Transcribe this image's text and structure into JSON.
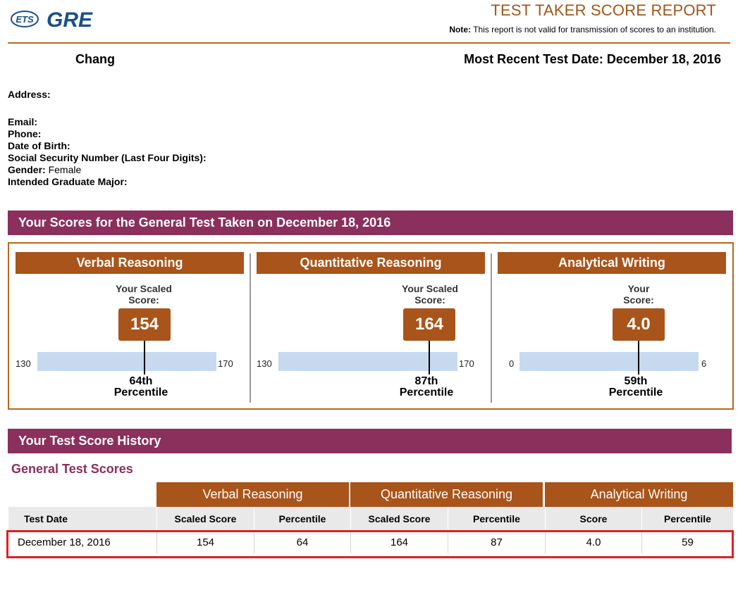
{
  "header": {
    "logo_ets": "ETS",
    "logo_gre": "GRE",
    "title": "TEST TAKER SCORE REPORT",
    "note_label": "Note:",
    "note_text": "This report is not valid for transmission of scores to an institution."
  },
  "candidate": {
    "name": "Chang",
    "recent_test_date": "Most Recent Test Date: December 18, 2016"
  },
  "info": {
    "address_label": "Address:",
    "email_label": "Email:",
    "phone_label": "Phone:",
    "dob_label": "Date of Birth:",
    "ssn_label": "Social Security Number (Last Four Digits):",
    "gender_label": "Gender:",
    "gender_value": "Female",
    "major_label": "Intended Graduate Major:"
  },
  "scores_section": {
    "title": "Your Scores for the General Test Taken on December 18, 2016",
    "columns": [
      {
        "heading": "Verbal Reasoning",
        "label_line1": "Your Scaled",
        "label_line2": "Score:",
        "score": "154",
        "min": "130",
        "max": "170",
        "fraction": 0.6,
        "percentile_ordinal": "64th",
        "percentile_word": "Percentile"
      },
      {
        "heading": "Quantitative Reasoning",
        "label_line1": "Your Scaled",
        "label_line2": "Score:",
        "score": "164",
        "min": "130",
        "max": "170",
        "fraction": 0.85,
        "percentile_ordinal": "87th",
        "percentile_word": "Percentile"
      },
      {
        "heading": "Analytical Writing",
        "label_line1": "Your",
        "label_line2": "Score:",
        "score": "4.0",
        "min": "0",
        "max": "6",
        "fraction": 0.667,
        "percentile_ordinal": "59th",
        "percentile_word": "Percentile"
      }
    ]
  },
  "history": {
    "title": "Your Test Score History",
    "subtitle": "General Test Scores",
    "groups": [
      "Verbal Reasoning",
      "Quantitative Reasoning",
      "Analytical Writing"
    ],
    "columns": [
      "Test Date",
      "Scaled Score",
      "Percentile",
      "Scaled Score",
      "Percentile",
      "Score",
      "Percentile"
    ],
    "rows": [
      [
        "December 18, 2016",
        "154",
        "64",
        "164",
        "87",
        "4.0",
        "59"
      ]
    ]
  },
  "colors": {
    "brand_orange": "#a9541a",
    "brand_purple": "#8b2f5c",
    "track_blue": "#c6d9ee",
    "highlight_red": "#e02020"
  }
}
